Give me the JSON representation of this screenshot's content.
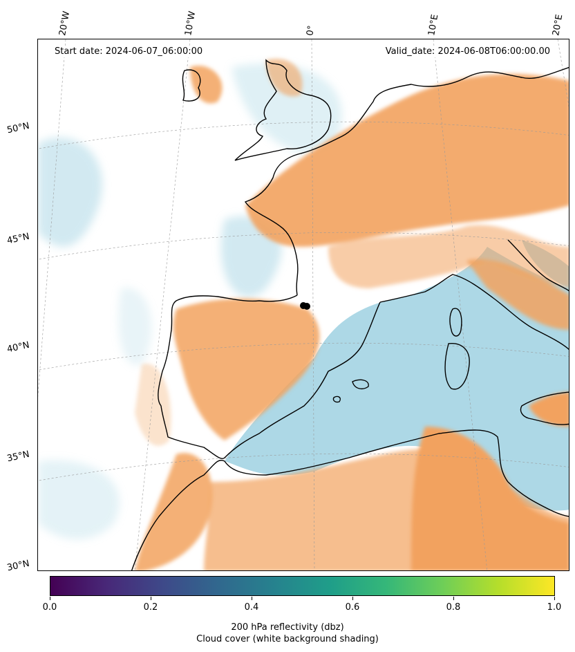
{
  "header": {
    "start_date": "Start date: 2024-06-07_06:00:00",
    "valid_date": "Valid_date: 2024-06-08T06:00:00.00"
  },
  "lon_labels": [
    "20°W",
    "10°W",
    "0°",
    "10°E",
    "20°E"
  ],
  "lat_labels": [
    "50°N",
    "45°N",
    "40°N",
    "35°N",
    "30°N"
  ],
  "colorbar": {
    "colormap": "viridis",
    "ticks": [
      "0.0",
      "0.2",
      "0.4",
      "0.6",
      "0.8",
      "1.0"
    ],
    "label_line1": "200 hPa reflectivity (dbz)",
    "label_line2": "Cloud cover (white background shading)"
  },
  "colors": {
    "land_orange": "#f2a25e",
    "sea_blue": "#add8e6",
    "coastline": "#000000"
  }
}
